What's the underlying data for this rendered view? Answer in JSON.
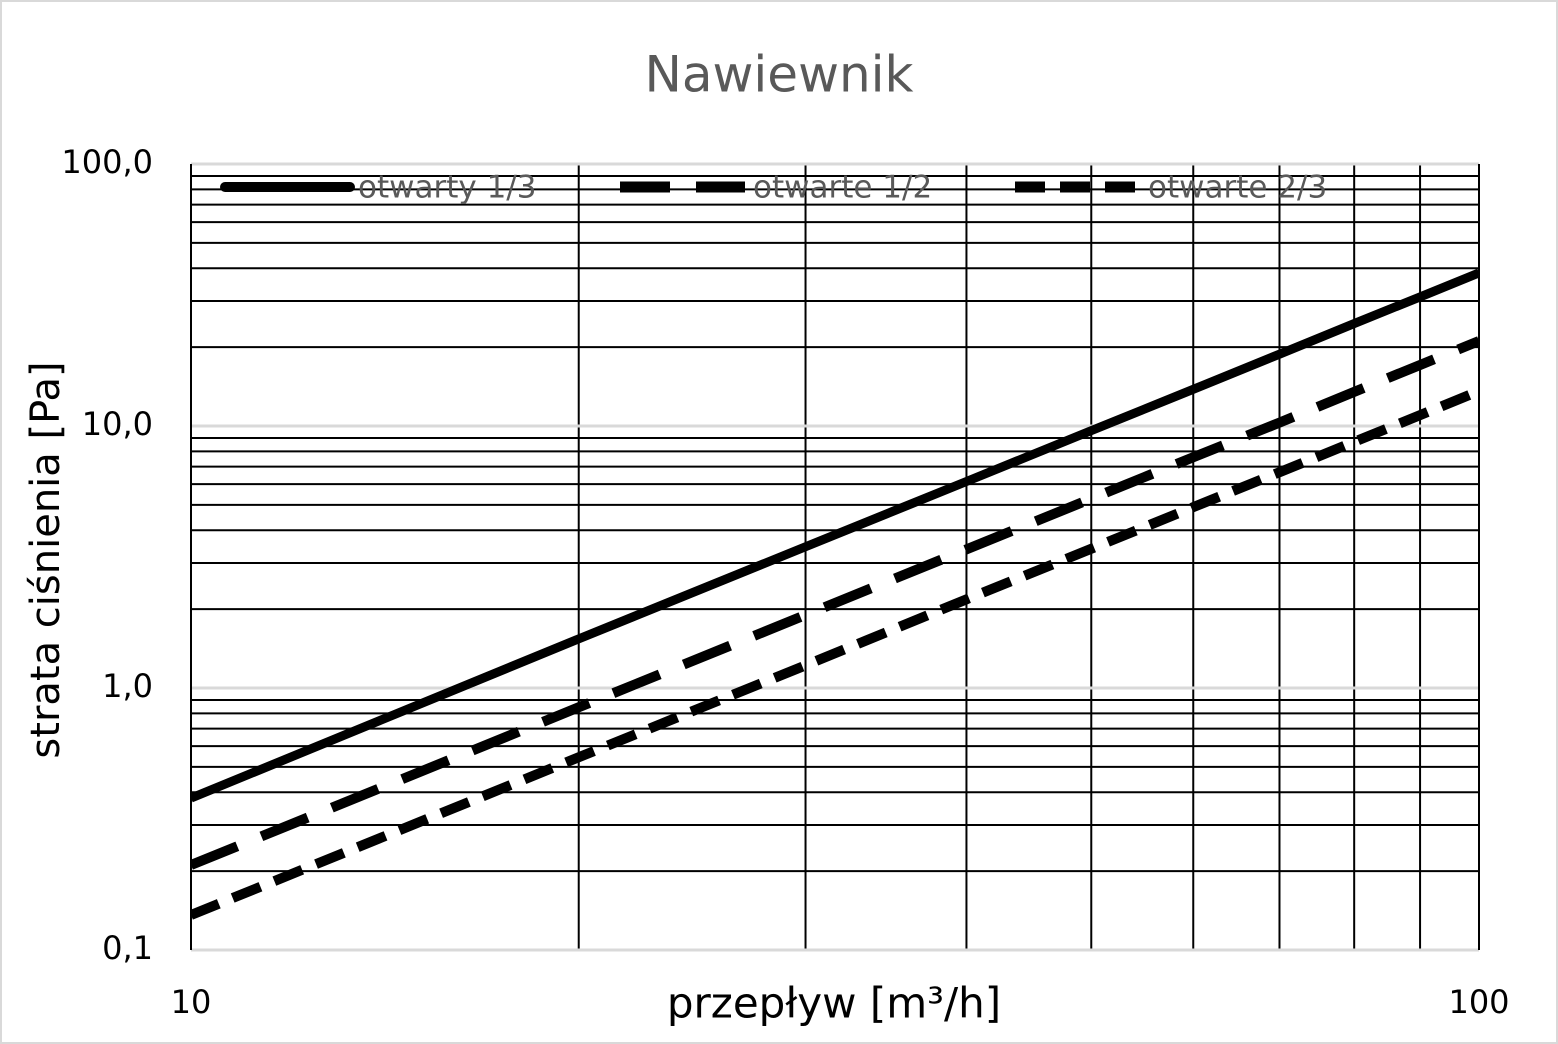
{
  "chart_data": {
    "type": "line",
    "title": "Nawiewnik",
    "x_label": "przepływ [m³/h]",
    "y_label": "strata ciśnienia [Pa]",
    "x": [
      10,
      20,
      30,
      40,
      50,
      60,
      70,
      80,
      90,
      100
    ],
    "series": [
      {
        "name": "otwarty 1/3",
        "color": "#000000",
        "dash": "solid",
        "values": [
          0.38,
          1.54,
          3.46,
          6.14,
          9.6,
          13.8,
          18.8,
          24.6,
          31.1,
          38.4
        ]
      },
      {
        "name": "otwarte 1/2",
        "color": "#000000",
        "dash": "dashed",
        "values": [
          0.211,
          0.844,
          1.9,
          3.38,
          5.28,
          7.6,
          10.3,
          13.5,
          17.1,
          21.1
        ]
      },
      {
        "name": "otwarte 2/3",
        "color": "#000000",
        "dash": "dotted",
        "values": [
          0.136,
          0.544,
          1.22,
          2.18,
          3.4,
          4.9,
          6.66,
          8.7,
          11.0,
          13.6
        ]
      }
    ],
    "x_log": true,
    "y_log": true,
    "xlim": [
      10,
      100
    ],
    "ylim": [
      0.1,
      100
    ],
    "xticks": [
      10,
      100
    ],
    "yticks": [
      {
        "value": 0.1,
        "label": "0,1"
      },
      {
        "value": 1,
        "label": "1,0"
      },
      {
        "value": 10,
        "label": "10,0"
      },
      {
        "value": 100,
        "label": "100,0"
      }
    ],
    "xminorticks": [
      20,
      30,
      40,
      50,
      60,
      70,
      80,
      90
    ],
    "yminorticks": [
      0.2,
      0.3,
      0.4,
      0.5,
      0.6,
      0.7,
      0.8,
      0.9,
      2,
      3,
      4,
      5,
      6,
      7,
      8,
      9,
      20,
      30,
      40,
      50,
      60,
      70,
      80,
      90
    ],
    "grid": true,
    "minor_grid": true,
    "legend": "top"
  }
}
